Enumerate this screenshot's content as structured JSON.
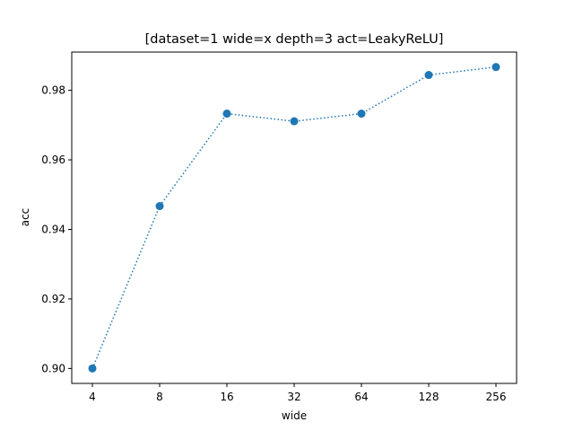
{
  "chart_data": {
    "type": "line",
    "title": "[dataset=1 wide=x depth=3 act=LeakyReLU]",
    "xlabel": "wide",
    "ylabel": "acc",
    "categories": [
      "4",
      "8",
      "16",
      "32",
      "64",
      "128",
      "256"
    ],
    "series": [
      {
        "values": [
          0.9,
          0.9467,
          0.9733,
          0.9711,
          0.9733,
          0.9844,
          0.9867
        ],
        "color": "#1f77b4",
        "line_style": "dotted",
        "marker": "circle"
      }
    ],
    "yticks": [
      "0.90",
      "0.92",
      "0.94",
      "0.96",
      "0.98"
    ],
    "ylim": [
      0.8957,
      0.991
    ],
    "grid": false,
    "legend": "none"
  }
}
